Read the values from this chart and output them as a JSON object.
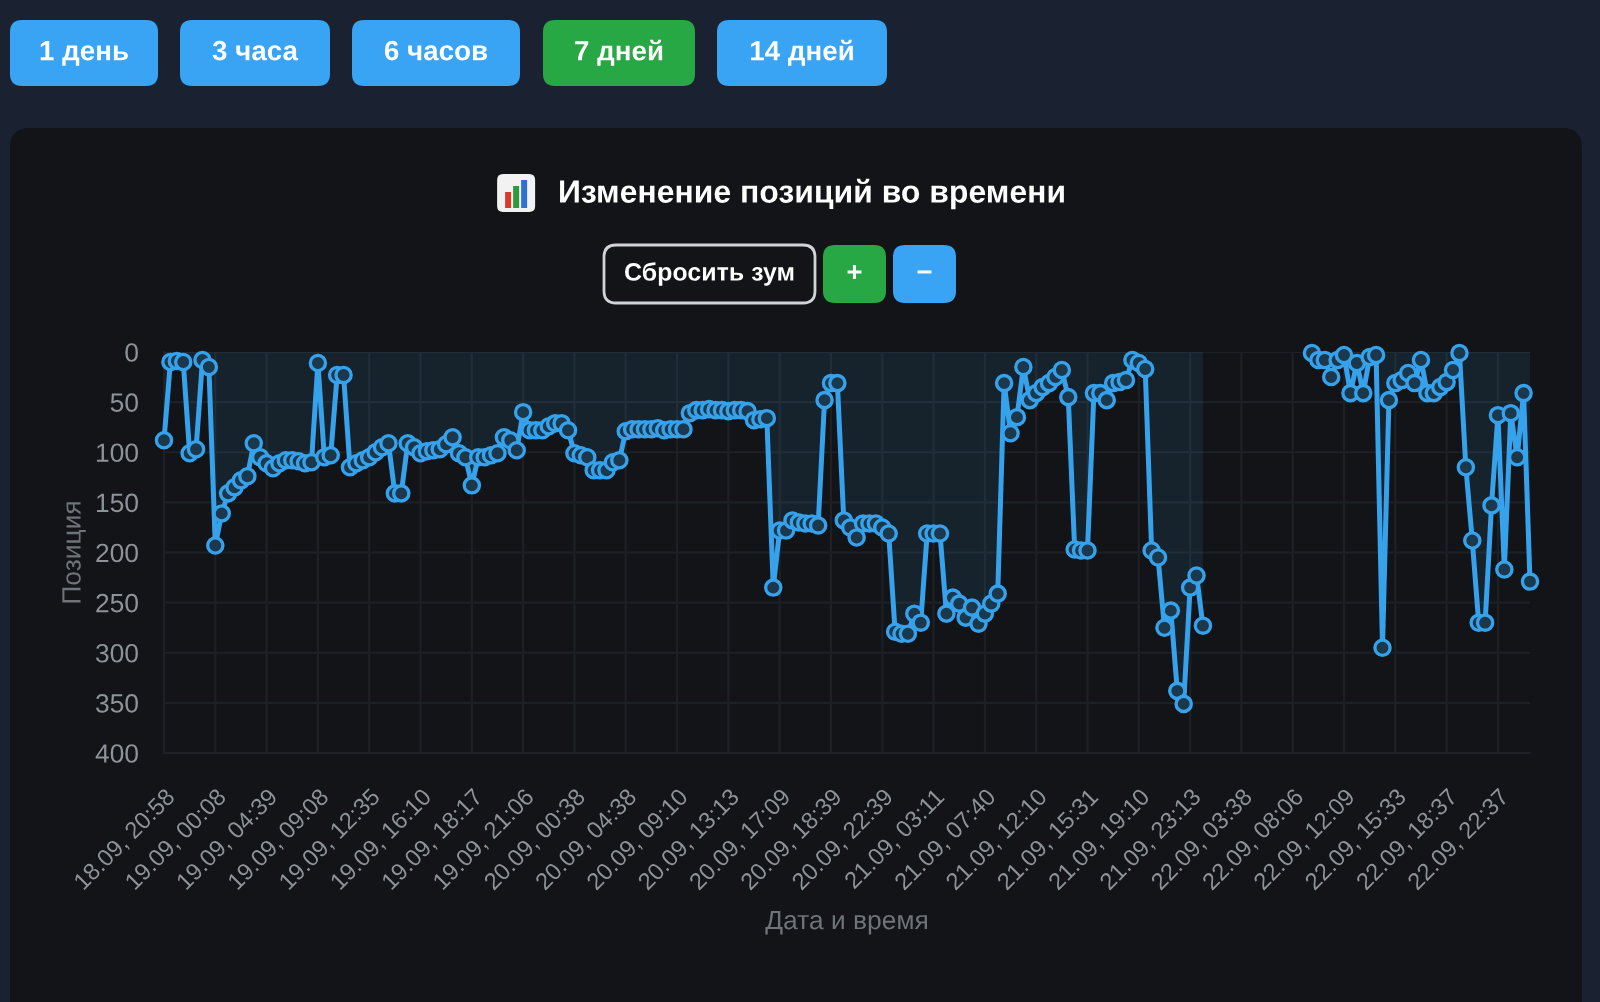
{
  "chart_data": {
    "type": "area",
    "title": "Изменение позиций во времени",
    "xlabel": "Дата и время",
    "ylabel": "Позиция",
    "annotations": [
      "1 день",
      "3 часа",
      "6 часов",
      "7 дней",
      "14 дней",
      "Сбросить зум",
      "+",
      "−"
    ],
    "categories": [
      "18.09, 20:58",
      null,
      null,
      null,
      null,
      null,
      null,
      null,
      "19.09, 00:08",
      null,
      null,
      null,
      null,
      null,
      null,
      null,
      "19.09, 04:39",
      null,
      null,
      null,
      null,
      null,
      null,
      null,
      "19.09, 09:08",
      null,
      null,
      null,
      null,
      null,
      null,
      null,
      "19.09, 12:35",
      null,
      null,
      null,
      null,
      null,
      null,
      null,
      "19.09, 16:10",
      null,
      null,
      null,
      null,
      null,
      null,
      null,
      "19.09, 18:17",
      null,
      null,
      null,
      null,
      null,
      null,
      null,
      "19.09, 21:06",
      null,
      null,
      null,
      null,
      null,
      null,
      null,
      "20.09, 00:38",
      null,
      null,
      null,
      null,
      null,
      null,
      null,
      "20.09, 04:38",
      null,
      null,
      null,
      null,
      null,
      null,
      null,
      "20.09, 09:10",
      null,
      null,
      null,
      null,
      null,
      null,
      null,
      "20.09, 13:13",
      null,
      null,
      null,
      null,
      null,
      null,
      null,
      "20.09, 17:09",
      null,
      null,
      null,
      null,
      null,
      null,
      null,
      "20.09, 18:39",
      null,
      null,
      null,
      null,
      null,
      null,
      null,
      "20.09, 22:39",
      null,
      null,
      null,
      null,
      null,
      null,
      null,
      "21.09, 03:11",
      null,
      null,
      null,
      null,
      null,
      null,
      null,
      "21.09, 07:40",
      null,
      null,
      null,
      null,
      null,
      null,
      null,
      "21.09, 12:10",
      null,
      null,
      null,
      null,
      null,
      null,
      null,
      "21.09, 15:31",
      null,
      null,
      null,
      null,
      null,
      null,
      null,
      "21.09, 19:10",
      null,
      null,
      null,
      null,
      null,
      null,
      null,
      "21.09, 23:13",
      null,
      null,
      null,
      null,
      null,
      null,
      null,
      "22.09, 03:38",
      null,
      null,
      null,
      null,
      null,
      null,
      null,
      "22.09, 08:06",
      null,
      null,
      null,
      null,
      null,
      null,
      null,
      "22.09, 12:09",
      null,
      null,
      null,
      null,
      null,
      null,
      null,
      "22.09, 15:33",
      null,
      null,
      null,
      null,
      null,
      null,
      null,
      "22.09, 18:37",
      null,
      null,
      null,
      null,
      null,
      null,
      null,
      "22.09, 22:37",
      null,
      null,
      null,
      null,
      null
    ],
    "series": [
      {
        "color": "#36a2eb",
        "values": [
          88,
          10,
          9,
          10,
          101,
          97,
          8,
          15,
          193,
          161,
          141,
          135,
          128,
          124,
          91,
          105,
          111,
          116,
          111,
          108,
          108,
          109,
          111,
          110,
          11,
          105,
          103,
          23,
          23,
          115,
          111,
          108,
          105,
          100,
          95,
          91,
          141,
          141,
          91,
          95,
          101,
          99,
          98,
          97,
          92,
          85,
          101,
          105,
          133,
          105,
          105,
          103,
          101,
          85,
          88,
          98,
          60,
          78,
          78,
          78,
          74,
          71,
          71,
          78,
          101,
          103,
          105,
          118,
          118,
          118,
          110,
          108,
          79,
          77,
          77,
          77,
          77,
          76,
          78,
          77,
          77,
          77,
          61,
          58,
          58,
          57,
          58,
          58,
          59,
          58,
          58,
          59,
          68,
          67,
          66,
          235,
          178,
          178,
          168,
          170,
          171,
          171,
          173,
          48,
          31,
          31,
          168,
          175,
          185,
          171,
          171,
          171,
          175,
          181,
          279,
          281,
          281,
          261,
          270,
          181,
          181,
          181,
          261,
          245,
          251,
          265,
          255,
          271,
          261,
          251,
          241,
          31,
          81,
          65,
          15,
          48,
          41,
          35,
          31,
          25,
          18,
          45,
          197,
          198,
          198,
          41,
          41,
          48,
          31,
          30,
          28,
          8,
          11,
          17,
          198,
          205,
          275,
          258,
          338,
          351,
          235,
          223,
          273,
          null,
          null,
          null,
          null,
          null,
          null,
          null,
          null,
          null,
          null,
          null,
          null,
          null,
          null,
          null,
          null,
          1,
          8,
          8,
          25,
          8,
          3,
          41,
          11,
          41,
          5,
          3,
          295,
          48,
          31,
          28,
          21,
          31,
          8,
          41,
          41,
          35,
          30,
          18,
          1,
          115,
          188,
          270,
          270,
          153,
          63,
          217,
          61,
          105,
          41,
          229
        ]
      }
    ],
    "ylim": [
      400,
      0
    ],
    "yticks": [
      0,
      50,
      100,
      150,
      200,
      250,
      300,
      350,
      400
    ],
    "grid": true,
    "marker": "circle",
    "line_style": "solid"
  }
}
